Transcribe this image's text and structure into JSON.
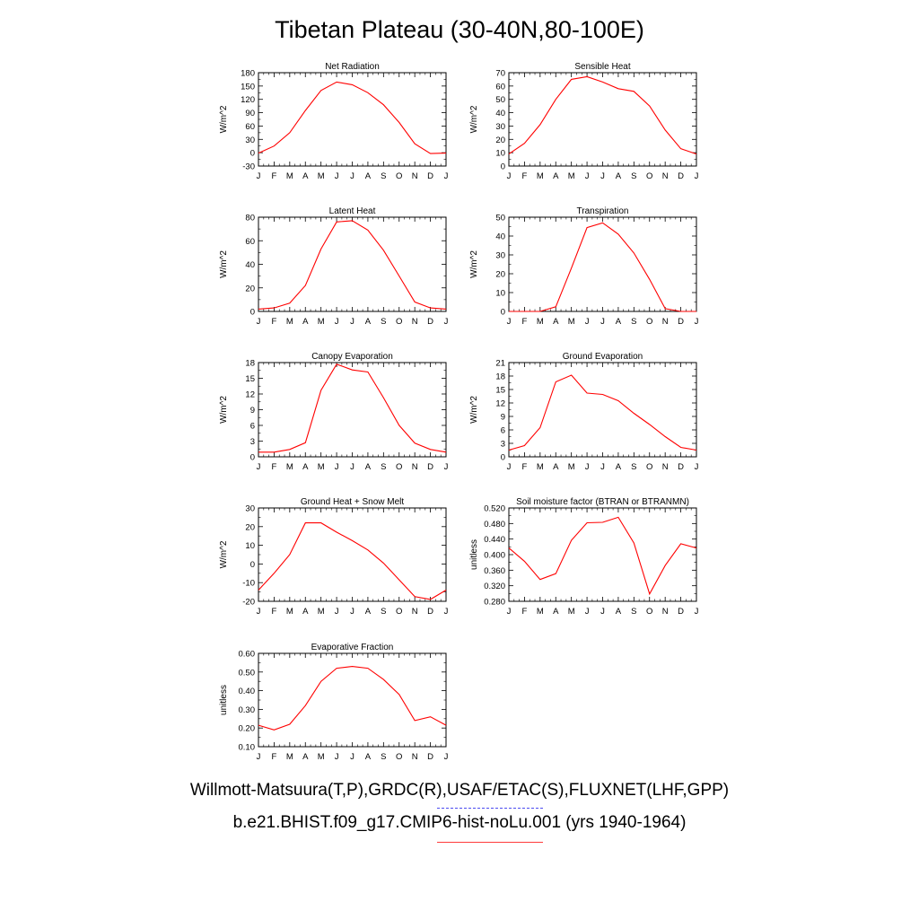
{
  "title": "Tibetan Plateau (30-40N,80-100E)",
  "legend": {
    "observations": "Willmott-Matsuura(T,P),GRDC(R),USAF/ETAC(S),FLUXNET(LHF,GPP)",
    "model": "b.e21.BHIST.f09_g17.CMIP6-hist-noLu.001 (yrs 1940-1964)",
    "observations_color": "#4b4bf0",
    "model_color": "#ff0000"
  },
  "chart_data": [
    {
      "type": "line",
      "title": "Net Radiation",
      "ylabel": "W/m^2",
      "ylim": [
        -30,
        180
      ],
      "yticks": [
        "-30",
        "0",
        "30",
        "60",
        "90",
        "120",
        "150",
        "180"
      ],
      "x": [
        "J",
        "F",
        "M",
        "A",
        "M",
        "J",
        "J",
        "A",
        "S",
        "O",
        "N",
        "D",
        "J"
      ],
      "series": [
        {
          "values": [
            -1,
            15,
            45,
            95,
            140,
            159,
            153,
            135,
            108,
            68,
            20,
            -2,
            -1
          ]
        }
      ]
    },
    {
      "type": "line",
      "title": "Sensible Heat",
      "ylabel": "W/m^2",
      "ylim": [
        0,
        70
      ],
      "yticks": [
        "0",
        "10",
        "20",
        "30",
        "40",
        "50",
        "60",
        "70"
      ],
      "x": [
        "J",
        "F",
        "M",
        "A",
        "M",
        "J",
        "J",
        "A",
        "S",
        "O",
        "N",
        "D",
        "J"
      ],
      "series": [
        {
          "values": [
            9,
            17,
            31,
            50,
            65,
            67,
            63,
            58,
            56,
            45,
            27,
            13,
            9
          ]
        }
      ]
    },
    {
      "type": "line",
      "title": "Latent Heat",
      "ylabel": "W/m^2",
      "ylim": [
        0,
        80
      ],
      "yticks": [
        "0",
        "20",
        "40",
        "60",
        "80"
      ],
      "x": [
        "J",
        "F",
        "M",
        "A",
        "M",
        "J",
        "J",
        "A",
        "S",
        "O",
        "N",
        "D",
        "J"
      ],
      "series": [
        {
          "values": [
            2,
            3,
            7,
            22,
            53,
            76,
            77,
            69,
            52,
            30,
            8,
            3,
            2
          ]
        }
      ]
    },
    {
      "type": "line",
      "title": "Transpiration",
      "ylabel": "W/m^2",
      "ylim": [
        0,
        50
      ],
      "yticks": [
        "0",
        "10",
        "20",
        "30",
        "40",
        "50"
      ],
      "x": [
        "J",
        "F",
        "M",
        "A",
        "M",
        "J",
        "J",
        "A",
        "S",
        "O",
        "N",
        "D",
        "J"
      ],
      "series": [
        {
          "values": [
            0,
            0,
            0,
            2.5,
            23,
            44.5,
            47,
            41,
            31,
            17,
            1.5,
            0,
            0
          ]
        }
      ]
    },
    {
      "type": "line",
      "title": "Canopy Evaporation",
      "ylabel": "W/m^2",
      "ylim": [
        0,
        18
      ],
      "yticks": [
        "0",
        "3",
        "6",
        "9",
        "12",
        "15",
        "18"
      ],
      "x": [
        "J",
        "F",
        "M",
        "A",
        "M",
        "J",
        "J",
        "A",
        "S",
        "O",
        "N",
        "D",
        "J"
      ],
      "series": [
        {
          "values": [
            0.9,
            0.9,
            1.4,
            2.7,
            12.7,
            17.7,
            16.6,
            16.2,
            11.3,
            6.0,
            2.6,
            1.4,
            0.9
          ]
        }
      ]
    },
    {
      "type": "line",
      "title": "Ground Evaporation",
      "ylabel": "W/m^2",
      "ylim": [
        0,
        21
      ],
      "yticks": [
        "0",
        "3",
        "6",
        "9",
        "12",
        "15",
        "18",
        "21"
      ],
      "x": [
        "J",
        "F",
        "M",
        "A",
        "M",
        "J",
        "J",
        "A",
        "S",
        "O",
        "N",
        "D",
        "J"
      ],
      "series": [
        {
          "values": [
            1.5,
            2.5,
            6.5,
            16.7,
            18.2,
            14.2,
            13.9,
            12.5,
            9.7,
            7.2,
            4.5,
            2.1,
            1.5
          ]
        }
      ]
    },
    {
      "type": "line",
      "title": "Ground Heat + Snow Melt",
      "ylabel": "W/m^2",
      "ylim": [
        -20,
        30
      ],
      "yticks": [
        "-20",
        "-10",
        "0",
        "10",
        "20",
        "30"
      ],
      "x": [
        "J",
        "F",
        "M",
        "A",
        "M",
        "J",
        "J",
        "A",
        "S",
        "O",
        "N",
        "D",
        "J"
      ],
      "series": [
        {
          "values": [
            -14,
            -5,
            5,
            22,
            22,
            17,
            12.5,
            7.5,
            0.5,
            -8.5,
            -17.5,
            -19,
            -14
          ]
        }
      ]
    },
    {
      "type": "line",
      "title": "Soil moisture factor (BTRAN or BTRANMN)",
      "ylabel": "unitless",
      "ylim": [
        0.28,
        0.52
      ],
      "yticks": [
        "0.280",
        "0.320",
        "0.360",
        "0.400",
        "0.440",
        "0.480",
        "0.520"
      ],
      "x": [
        "J",
        "F",
        "M",
        "A",
        "M",
        "J",
        "J",
        "A",
        "S",
        "O",
        "N",
        "D",
        "J"
      ],
      "series": [
        {
          "values": [
            0.417,
            0.383,
            0.336,
            0.351,
            0.437,
            0.482,
            0.483,
            0.496,
            0.43,
            0.299,
            0.372,
            0.428,
            0.417
          ]
        }
      ]
    },
    {
      "type": "line",
      "title": "Evaporative Fraction",
      "ylabel": "unitless",
      "ylim": [
        0.1,
        0.6
      ],
      "yticks": [
        "0.10",
        "0.20",
        "0.30",
        "0.40",
        "0.50",
        "0.60"
      ],
      "x": [
        "J",
        "F",
        "M",
        "A",
        "M",
        "J",
        "J",
        "A",
        "S",
        "O",
        "N",
        "D",
        "J"
      ],
      "series": [
        {
          "values": [
            0.215,
            0.19,
            0.22,
            0.32,
            0.45,
            0.52,
            0.53,
            0.52,
            0.46,
            0.38,
            0.24,
            0.26,
            0.215
          ]
        }
      ]
    }
  ]
}
